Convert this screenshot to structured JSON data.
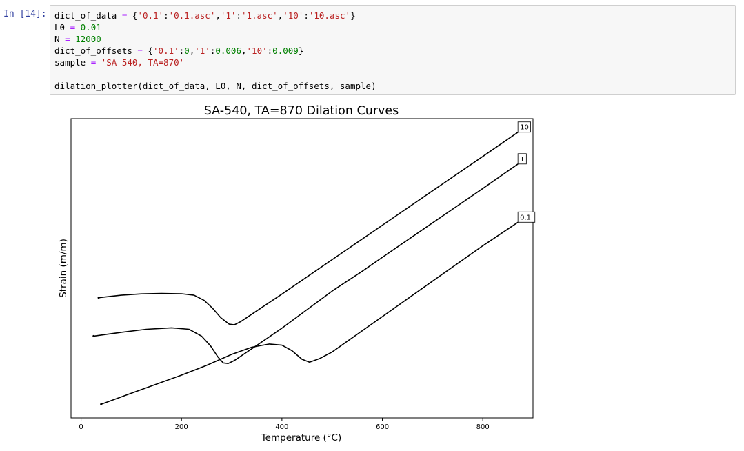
{
  "prompt": "In [14]:",
  "code": {
    "line1": {
      "a": "dict_of_data ",
      "op": "=",
      "b": " {",
      "s1": "'0.1'",
      "c1": ":",
      "s2": "'0.1.asc'",
      "c2": ",",
      "s3": "'1'",
      "c3": ":",
      "s4": "'1.asc'",
      "c4": ",",
      "s5": "'10'",
      "c5": ":",
      "s6": "'10.asc'",
      "end": "}"
    },
    "line2": {
      "a": "L0 ",
      "op": "=",
      "sp": " ",
      "num": "0.01"
    },
    "line3": {
      "a": "N ",
      "op": "=",
      "sp": " ",
      "num": "12000"
    },
    "line4": {
      "a": "dict_of_offsets ",
      "op": "=",
      "b": " {",
      "s1": "'0.1'",
      "c1": ":",
      "n1": "0",
      "c2": ",",
      "s2": "'1'",
      "c3": ":",
      "n2": "0.006",
      "c4": ",",
      "s3": "'10'",
      "c5": ":",
      "n3": "0.009",
      "end": "}"
    },
    "line5": {
      "a": "sample ",
      "op": "=",
      "sp": " ",
      "str": "'SA-540, TA=870'"
    },
    "line7": "dilation_plotter(dict_of_data, L0, N, dict_of_offsets, sample)"
  },
  "chart_data": {
    "type": "line",
    "title": "SA-540, TA=870 Dilation Curves",
    "xlabel": "Temperature (°C)",
    "ylabel": "Strain (m/m)",
    "xlim": [
      -20,
      900
    ],
    "xticks": [
      0,
      200,
      400,
      600,
      800
    ],
    "y_tick_labels_shown": false,
    "grid": false,
    "legend": "none",
    "series": [
      {
        "name": "10",
        "end_label": "10",
        "color": "#000000",
        "points": [
          [
            35,
            0.506
          ],
          [
            80,
            0.5098
          ],
          [
            120,
            0.5117
          ],
          [
            160,
            0.5124
          ],
          [
            200,
            0.512
          ],
          [
            225,
            0.5098
          ],
          [
            245,
            0.502
          ],
          [
            262,
            0.49
          ],
          [
            278,
            0.476
          ],
          [
            295,
            0.466
          ],
          [
            305,
            0.465
          ],
          [
            318,
            0.47
          ],
          [
            400,
            0.5115
          ],
          [
            500,
            0.5635
          ],
          [
            600,
            0.6155
          ],
          [
            700,
            0.6675
          ],
          [
            800,
            0.7195
          ],
          [
            870,
            0.756
          ]
        ]
      },
      {
        "name": "1",
        "end_label": "1",
        "color": "#000000",
        "points": [
          [
            25,
            0.448
          ],
          [
            80,
            0.4537
          ],
          [
            130,
            0.4583
          ],
          [
            180,
            0.4605
          ],
          [
            215,
            0.4583
          ],
          [
            240,
            0.448
          ],
          [
            258,
            0.433
          ],
          [
            272,
            0.417
          ],
          [
            283,
            0.4075
          ],
          [
            293,
            0.4065
          ],
          [
            305,
            0.411
          ],
          [
            350,
            0.434
          ],
          [
            400,
            0.46
          ],
          [
            450,
            0.488
          ],
          [
            500,
            0.516
          ],
          [
            530,
            0.531
          ],
          [
            560,
            0.546
          ],
          [
            600,
            0.5671
          ],
          [
            700,
            0.619
          ],
          [
            800,
            0.671
          ],
          [
            870,
            0.708
          ]
        ]
      },
      {
        "name": "0.1",
        "end_label": "0.1",
        "color": "#000000",
        "points": [
          [
            40,
            0.345
          ],
          [
            100,
            0.3617
          ],
          [
            150,
            0.3754
          ],
          [
            200,
            0.389
          ],
          [
            250,
            0.4037
          ],
          [
            300,
            0.4204
          ],
          [
            340,
            0.4312
          ],
          [
            375,
            0.436
          ],
          [
            400,
            0.4342
          ],
          [
            420,
            0.426
          ],
          [
            440,
            0.413
          ],
          [
            455,
            0.4085
          ],
          [
            475,
            0.414
          ],
          [
            500,
            0.424
          ],
          [
            600,
            0.4775
          ],
          [
            700,
            0.531
          ],
          [
            800,
            0.5845
          ],
          [
            870,
            0.62
          ]
        ]
      }
    ]
  }
}
